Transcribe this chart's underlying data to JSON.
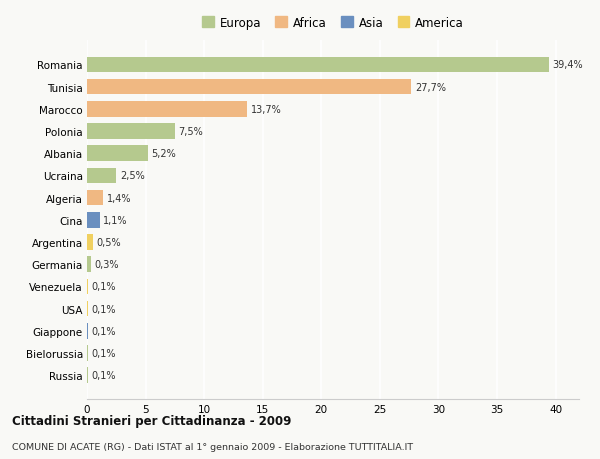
{
  "countries": [
    "Romania",
    "Tunisia",
    "Marocco",
    "Polonia",
    "Albania",
    "Ucraina",
    "Algeria",
    "Cina",
    "Argentina",
    "Germania",
    "Venezuela",
    "USA",
    "Giappone",
    "Bielorussia",
    "Russia"
  ],
  "values": [
    39.4,
    27.7,
    13.7,
    7.5,
    5.2,
    2.5,
    1.4,
    1.1,
    0.5,
    0.3,
    0.1,
    0.1,
    0.1,
    0.1,
    0.1
  ],
  "labels": [
    "39,4%",
    "27,7%",
    "13,7%",
    "7,5%",
    "5,2%",
    "2,5%",
    "1,4%",
    "1,1%",
    "0,5%",
    "0,3%",
    "0,1%",
    "0,1%",
    "0,1%",
    "0,1%",
    "0,1%"
  ],
  "continents": [
    "Europa",
    "Africa",
    "Africa",
    "Europa",
    "Europa",
    "Europa",
    "Africa",
    "Asia",
    "America",
    "Europa",
    "America",
    "America",
    "Asia",
    "Europa",
    "Europa"
  ],
  "colors": {
    "Europa": "#b5c98e",
    "Africa": "#f0b882",
    "Asia": "#6a8fbf",
    "America": "#f0d060"
  },
  "xlim": [
    0,
    42
  ],
  "xticks": [
    0,
    5,
    10,
    15,
    20,
    25,
    30,
    35,
    40
  ],
  "title": "Cittadini Stranieri per Cittadinanza - 2009",
  "subtitle": "COMUNE DI ACATE (RG) - Dati ISTAT al 1° gennaio 2009 - Elaborazione TUTTITALIA.IT",
  "background_color": "#f9f9f6",
  "grid_color": "#ffffff",
  "bar_height": 0.7,
  "legend_order": [
    "Europa",
    "Africa",
    "Asia",
    "America"
  ]
}
